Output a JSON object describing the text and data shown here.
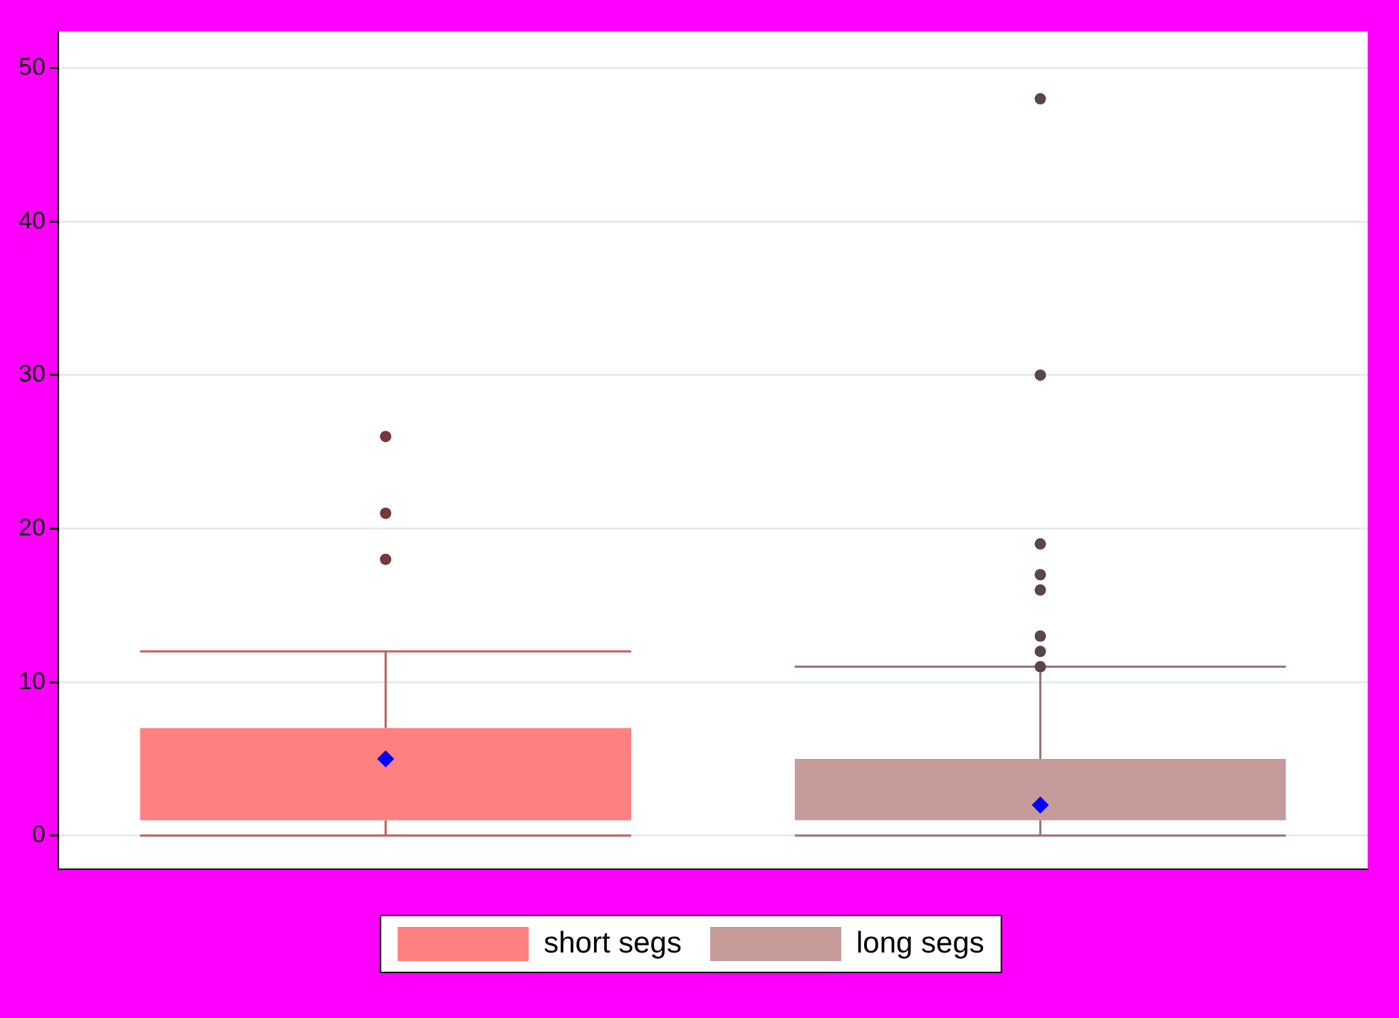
{
  "chart_data": {
    "type": "box",
    "categories": [
      null,
      null
    ],
    "series": [
      {
        "name": "short segs",
        "color": "#ff8080",
        "boxes": [
          {
            "low": 0,
            "q1": 1,
            "median": 5,
            "q3": 7,
            "high": 12,
            "outliers": [
              18,
              21,
              26
            ]
          },
          null
        ]
      },
      {
        "name": "long segs",
        "color": "#c89b9b",
        "boxes": [
          null,
          {
            "low": 0,
            "q1": 1,
            "median": 2,
            "q3": 5,
            "high": 11,
            "outliers": [
              11,
              12,
              13,
              16,
              17,
              19,
              30,
              48
            ]
          }
        ]
      }
    ],
    "ylim": [
      -2.2,
      52.4
    ],
    "yticks": [
      0,
      10,
      20,
      30,
      40,
      50
    ],
    "grid": "y",
    "legend": "bottom",
    "marker": "diamond"
  }
}
